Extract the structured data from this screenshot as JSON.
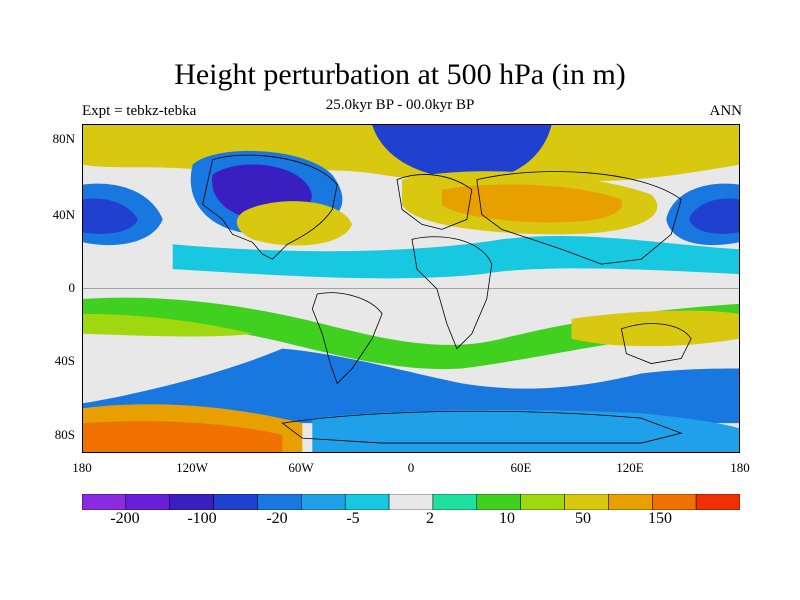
{
  "title": "Height perturbation at 500 hPa (in m)",
  "subtitle": "25.0kyr BP - 00.0kyr BP",
  "left_label": "Expt = tebkz-tebka",
  "right_label": "ANN",
  "lat_ticks": [
    "80N",
    "40N",
    "0",
    "40S",
    "80S"
  ],
  "lon_ticks": [
    "180",
    "120W",
    "60W",
    "0",
    "60E",
    "120E",
    "180"
  ],
  "colorbar": {
    "colors": [
      "#8a2be2",
      "#6a20d8",
      "#3a1fc0",
      "#2040d0",
      "#1878e0",
      "#20a0e8",
      "#18c8e0",
      "#e8e8e8",
      "#20e0a0",
      "#40d020",
      "#a0d810",
      "#d8c810",
      "#e8a000",
      "#f07000",
      "#f03000"
    ],
    "labels": [
      "-200",
      "-100",
      "-20",
      "-5",
      "2",
      "10",
      "50",
      "150"
    ]
  }
}
